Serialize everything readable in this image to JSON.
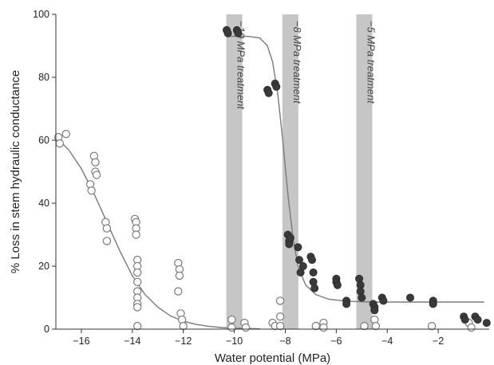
{
  "chart_data": {
    "type": "scatter",
    "title": "",
    "xlabel": "Water potential (MPa)",
    "ylabel": "% Loss in stem hydraulic conductance",
    "xlim": [
      -17,
      0
    ],
    "ylim": [
      0,
      100
    ],
    "xticks": [
      -16,
      -14,
      -12,
      -10,
      -8,
      -6,
      -4,
      -2
    ],
    "yticks": [
      0,
      20,
      40,
      60,
      80,
      100
    ],
    "grid": false,
    "legend": "none",
    "treatment_bands": [
      {
        "label": "−10 MPa treatment",
        "center": -10
      },
      {
        "label": "−8 MPa treatment",
        "center": -7.8
      },
      {
        "label": "−5 MPa treatment",
        "center": -4.9
      }
    ],
    "series": [
      {
        "marker": "open-circle",
        "points": [
          [
            -16.9,
            61
          ],
          [
            -16.85,
            59
          ],
          [
            -16.6,
            62
          ],
          [
            -15.65,
            46
          ],
          [
            -15.6,
            44
          ],
          [
            -15.5,
            55
          ],
          [
            -15.45,
            53
          ],
          [
            -15.45,
            50
          ],
          [
            -15.4,
            49
          ],
          [
            -15.05,
            34
          ],
          [
            -15.0,
            32
          ],
          [
            -15.0,
            28
          ],
          [
            -13.9,
            35
          ],
          [
            -13.85,
            34
          ],
          [
            -13.85,
            32
          ],
          [
            -13.85,
            30
          ],
          [
            -13.8,
            22
          ],
          [
            -13.8,
            20
          ],
          [
            -13.8,
            18
          ],
          [
            -13.8,
            15
          ],
          [
            -13.8,
            12
          ],
          [
            -13.8,
            10
          ],
          [
            -13.8,
            8
          ],
          [
            -13.8,
            7
          ],
          [
            -13.8,
            1
          ],
          [
            -12.2,
            21
          ],
          [
            -12.15,
            19
          ],
          [
            -12.15,
            17
          ],
          [
            -12.2,
            12
          ],
          [
            -12.1,
            5
          ],
          [
            -12.05,
            3
          ],
          [
            -12.0,
            1
          ],
          [
            -10.1,
            3
          ],
          [
            -10.1,
            0.5
          ],
          [
            -9.6,
            2
          ],
          [
            -9.55,
            0.5
          ],
          [
            -8.5,
            2
          ],
          [
            -8.4,
            1
          ],
          [
            -8.2,
            9
          ],
          [
            -8.2,
            4
          ],
          [
            -8.2,
            1
          ],
          [
            -6.8,
            1
          ],
          [
            -6.5,
            2
          ],
          [
            -6.5,
            0.5
          ],
          [
            -4.9,
            1
          ],
          [
            -4.5,
            3
          ],
          [
            -4.45,
            1
          ],
          [
            -2.25,
            1
          ],
          [
            -0.8,
            2
          ],
          [
            -0.7,
            0.5
          ]
        ]
      },
      {
        "marker": "filled-circle",
        "points": [
          [
            -10.3,
            95
          ],
          [
            -10.25,
            94
          ],
          [
            -9.9,
            95
          ],
          [
            -9.85,
            94
          ],
          [
            -8.7,
            76
          ],
          [
            -8.65,
            75
          ],
          [
            -8.4,
            78
          ],
          [
            -8.35,
            77
          ],
          [
            -7.9,
            30
          ],
          [
            -7.85,
            28
          ],
          [
            -7.85,
            27
          ],
          [
            -7.8,
            29
          ],
          [
            -7.5,
            26
          ],
          [
            -7.45,
            22
          ],
          [
            -7.4,
            18
          ],
          [
            -7.3,
            20
          ],
          [
            -7.0,
            23
          ],
          [
            -6.95,
            22
          ],
          [
            -6.9,
            18
          ],
          [
            -6.9,
            15
          ],
          [
            -6.85,
            13
          ],
          [
            -6.0,
            16
          ],
          [
            -6.0,
            15
          ],
          [
            -5.95,
            14
          ],
          [
            -5.6,
            9
          ],
          [
            -5.6,
            8
          ],
          [
            -5.1,
            16
          ],
          [
            -5.05,
            14
          ],
          [
            -5.05,
            12
          ],
          [
            -5.0,
            10
          ],
          [
            -4.55,
            8
          ],
          [
            -4.5,
            7
          ],
          [
            -4.5,
            6
          ],
          [
            -4.2,
            10
          ],
          [
            -4.15,
            9
          ],
          [
            -3.1,
            10
          ],
          [
            -2.2,
            9
          ],
          [
            -2.2,
            8
          ],
          [
            -1.0,
            4
          ],
          [
            -0.95,
            3
          ],
          [
            -0.55,
            4
          ],
          [
            -0.45,
            3
          ],
          [
            -0.1,
            2
          ]
        ]
      }
    ],
    "fit_curves": [
      {
        "points": [
          [
            -17,
            61
          ],
          [
            -16.5,
            57
          ],
          [
            -16,
            51
          ],
          [
            -15.5,
            43
          ],
          [
            -15,
            34
          ],
          [
            -14.5,
            25
          ],
          [
            -14,
            17
          ],
          [
            -13.5,
            11
          ],
          [
            -13,
            7
          ],
          [
            -12.5,
            4.2
          ],
          [
            -12,
            2.5
          ],
          [
            -11.5,
            1.5
          ],
          [
            -11,
            0.9
          ],
          [
            -10.5,
            0.5
          ],
          [
            -10,
            0.3
          ],
          [
            -9.5,
            0.2
          ],
          [
            -9,
            0.1
          ]
        ]
      },
      {
        "points": [
          [
            -10.3,
            93
          ],
          [
            -9.5,
            93
          ],
          [
            -9.0,
            92.5
          ],
          [
            -8.7,
            90
          ],
          [
            -8.5,
            85
          ],
          [
            -8.3,
            75
          ],
          [
            -8.1,
            60
          ],
          [
            -7.9,
            43
          ],
          [
            -7.7,
            29
          ],
          [
            -7.5,
            20
          ],
          [
            -7.2,
            14
          ],
          [
            -6.8,
            11
          ],
          [
            -6.3,
            9.5
          ],
          [
            -5.5,
            8.8
          ],
          [
            -4.5,
            8.6
          ],
          [
            -3,
            8.6
          ],
          [
            -1.5,
            8.6
          ],
          [
            -0.2,
            8.6
          ]
        ]
      }
    ]
  }
}
